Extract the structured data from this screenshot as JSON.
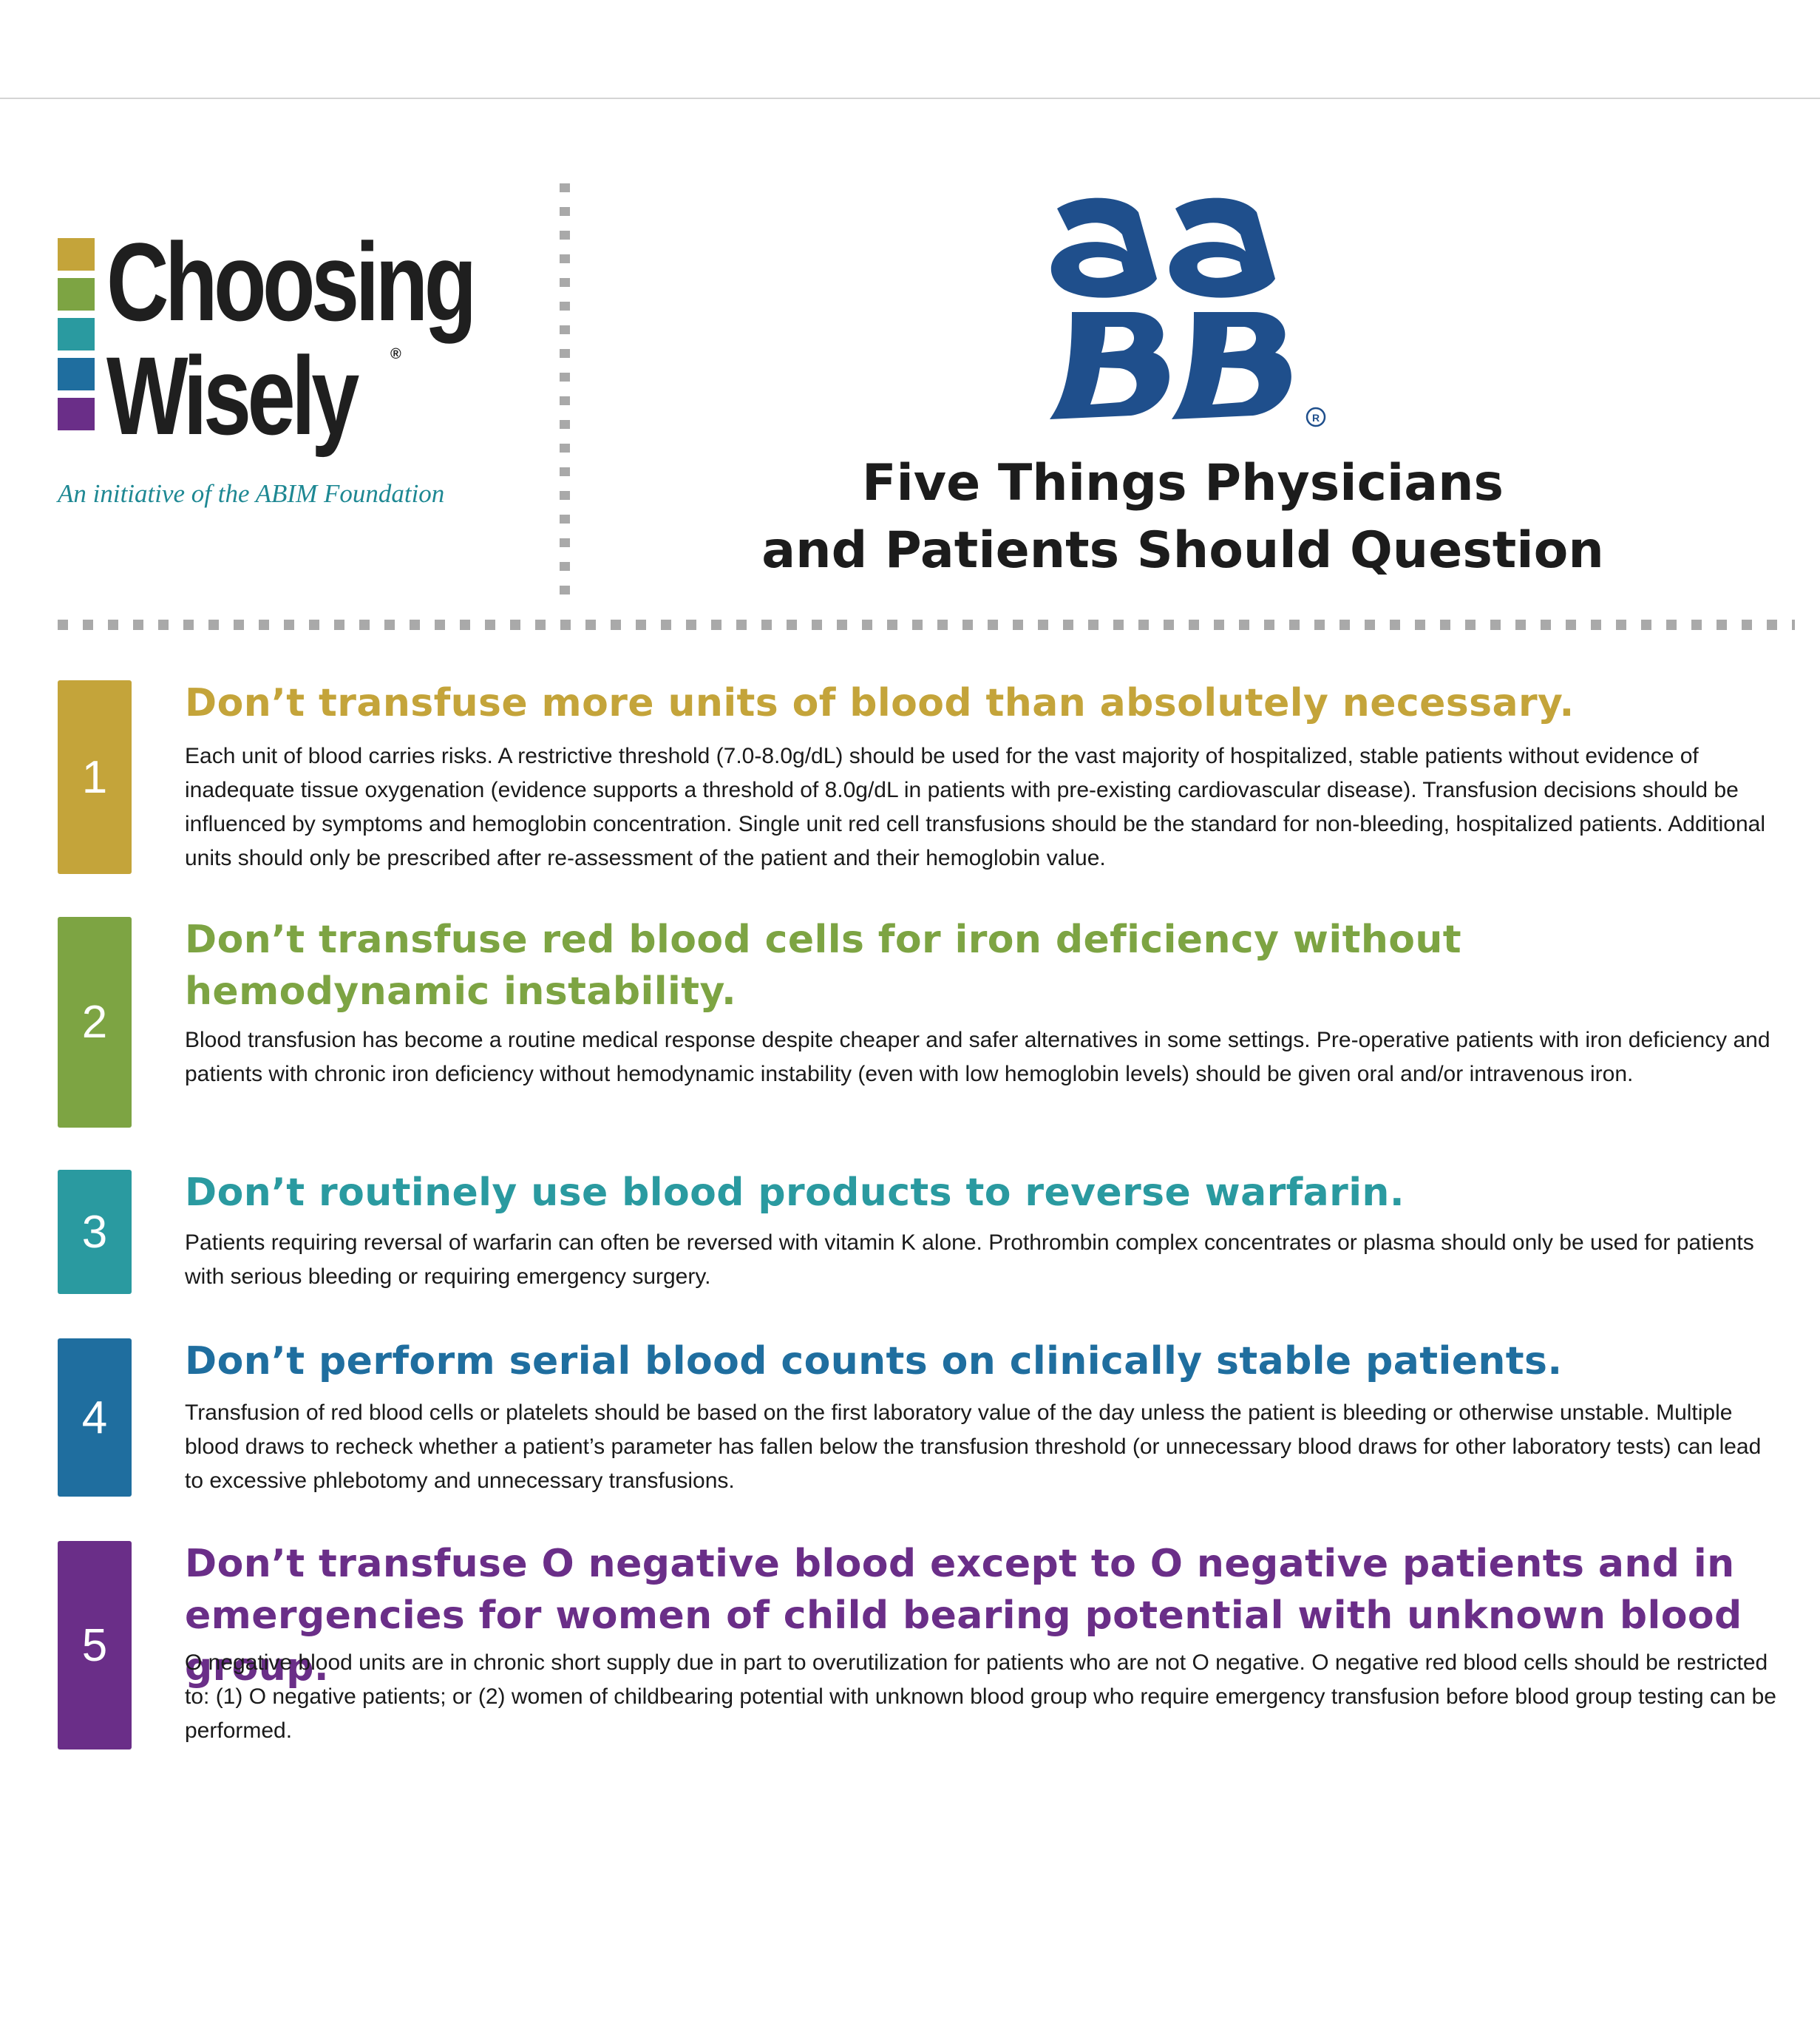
{
  "header": {
    "logo_left": {
      "word1": "Choosing",
      "word2": "Wisely",
      "registered_mark": "®",
      "tagline": "An initiative of the ABIM Foundation",
      "bar_colors": [
        "#c4a43a",
        "#7da443",
        "#2a9aa0",
        "#1f6e9f",
        "#6a2e88"
      ]
    },
    "logo_right": {
      "text": "aaBB",
      "registered_mark": "®",
      "color": "#1f4f8c"
    },
    "title_line1": "Five Things Physicians",
    "title_line2": "and Patients Should Question"
  },
  "items": [
    {
      "number": "1",
      "color": "#c4a43a",
      "title": "Don’t transfuse more units of blood than absolutely necessary.",
      "body": "Each unit of blood carries risks. A restrictive threshold (7.0-8.0g/dL) should be used for the vast majority of hospitalized, stable patients without evidence of inadequate tissue oxygenation (evidence supports a threshold of 8.0g/dL in patients with pre-existing cardiovascular disease). Transfusion decisions should be influenced by symptoms and hemoglobin concentration. Single unit red cell transfusions should be the standard for non-bleeding, hospitalized patients. Additional units should only be prescribed after re-assessment of the patient and their hemoglobin value."
    },
    {
      "number": "2",
      "color": "#7da443",
      "title": "Don’t transfuse red blood cells for iron deficiency without hemodynamic instability.",
      "body": "Blood transfusion has become a routine medical response despite cheaper and safer alternatives in some settings. Pre-operative patients with iron deficiency and patients with chronic iron deficiency without hemodynamic instability (even with low hemoglobin levels) should be given oral and/or intravenous iron."
    },
    {
      "number": "3",
      "color": "#2a9aa0",
      "title": "Don’t routinely use blood products to reverse warfarin.",
      "body": "Patients requiring reversal of warfarin can often be reversed with vitamin K alone. Prothrombin complex concentrates or plasma should only be used for patients with serious bleeding or requiring emergency surgery."
    },
    {
      "number": "4",
      "color": "#1f6e9f",
      "title": "Don’t perform serial blood counts on clinically stable patients.",
      "body": "Transfusion of red blood cells or platelets should be based on the first laboratory value of the day unless the patient is bleeding or otherwise unstable. Multiple blood draws to recheck whether a patient’s parameter has fallen below the transfusion threshold (or unnecessary blood draws for other laboratory tests) can lead to excessive phlebotomy and unnecessary transfusions."
    },
    {
      "number": "5",
      "color": "#6a2e88",
      "title": "Don’t transfuse O negative blood except to O negative patients and in emergencies for women of child bearing potential with unknown blood group.",
      "body": "O negative blood units are in chronic short supply due in part to overutilization for patients who are not O negative. O negative red blood cells should be restricted to: (1) O negative patients; or (2) women of childbearing potential with unknown blood group who require emergency transfusion before blood group testing can be performed."
    }
  ]
}
